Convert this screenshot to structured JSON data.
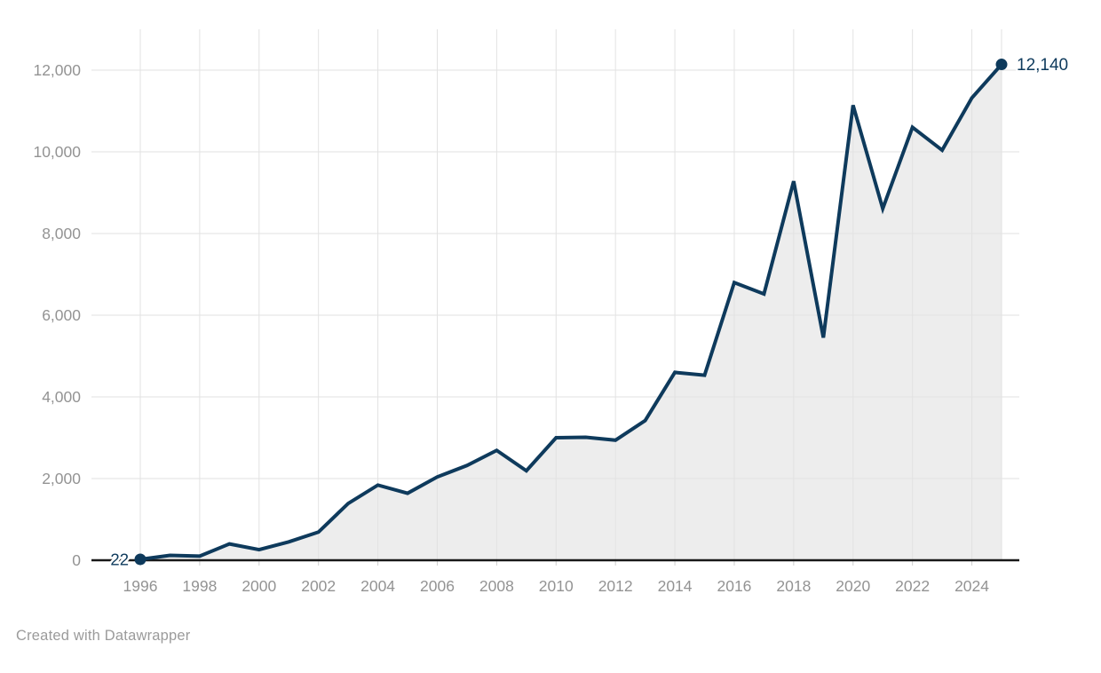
{
  "chart_data": {
    "type": "area",
    "title": "",
    "xlabel": "",
    "ylabel": "",
    "x": [
      1996,
      1997,
      1998,
      1999,
      2000,
      2001,
      2002,
      2003,
      2004,
      2005,
      2006,
      2007,
      2008,
      2009,
      2010,
      2011,
      2012,
      2013,
      2014,
      2015,
      2016,
      2017,
      2018,
      2019,
      2020,
      2021,
      2022,
      2023,
      2024,
      2025
    ],
    "values": [
      22,
      120,
      100,
      400,
      260,
      450,
      690,
      1390,
      1840,
      1640,
      2040,
      2320,
      2690,
      2190,
      3000,
      3010,
      2940,
      3420,
      4600,
      4530,
      6800,
      6520,
      9280,
      5450,
      11140,
      8610,
      10600,
      10040,
      11320,
      12140
    ],
    "ylim": [
      0,
      12000
    ],
    "yticks": [
      0,
      2000,
      4000,
      6000,
      8000,
      10000,
      12000
    ],
    "ytick_labels": [
      "0",
      "2,000",
      "4,000",
      "6,000",
      "8,000",
      "10,000",
      "12,000"
    ],
    "xticks": [
      1996,
      1998,
      2000,
      2002,
      2004,
      2006,
      2008,
      2010,
      2012,
      2014,
      2016,
      2018,
      2020,
      2022,
      2024
    ],
    "xtick_labels": [
      "1996",
      "1998",
      "2000",
      "2002",
      "2004",
      "2006",
      "2008",
      "2010",
      "2012",
      "2014",
      "2016",
      "2018",
      "2020",
      "2022",
      "2024"
    ],
    "x_gridlines_extra": [
      2025
    ],
    "grid": true,
    "legend": false,
    "first_point_label": "22",
    "last_point_label": "12,140",
    "colors": {
      "line": "#0e3a5c",
      "area_fill": "#ededed",
      "gridline": "#e2e2e2",
      "axis_line": "#181818",
      "tick_mark": "#cfcfcf",
      "tick_label": "#939393",
      "value_label": "#0e3a5c",
      "label_halo": "#ffffff"
    }
  },
  "footer": {
    "credit": "Created with Datawrapper"
  }
}
